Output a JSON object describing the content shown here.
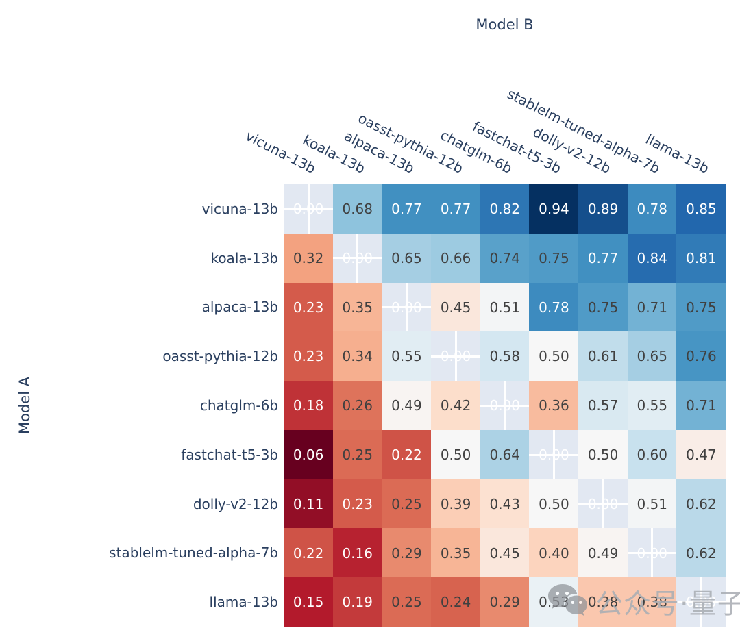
{
  "chart_data": {
    "type": "heatmap",
    "title": "",
    "xlabel": "Model B",
    "ylabel": "Model A",
    "x_categories": [
      "vicuna-13b",
      "koala-13b",
      "alpaca-13b",
      "oasst-pythia-12b",
      "chatglm-6b",
      "fastchat-t5-3b",
      "dolly-v2-12b",
      "stablelm-tuned-alpha-7b",
      "llama-13b"
    ],
    "y_categories": [
      "vicuna-13b",
      "koala-13b",
      "alpaca-13b",
      "oasst-pythia-12b",
      "chatglm-6b",
      "fastchat-t5-3b",
      "dolly-v2-12b",
      "stablelm-tuned-alpha-7b",
      "llama-13b"
    ],
    "matrix": [
      [
        null,
        0.68,
        0.77,
        0.77,
        0.82,
        0.94,
        0.89,
        0.78,
        0.85
      ],
      [
        0.32,
        null,
        0.65,
        0.66,
        0.74,
        0.75,
        0.77,
        0.84,
        0.81
      ],
      [
        0.23,
        0.35,
        null,
        0.45,
        0.51,
        0.78,
        0.75,
        0.71,
        0.75
      ],
      [
        0.23,
        0.34,
        0.55,
        null,
        0.58,
        0.5,
        0.61,
        0.65,
        0.76
      ],
      [
        0.18,
        0.26,
        0.49,
        0.42,
        null,
        0.36,
        0.57,
        0.55,
        0.71
      ],
      [
        0.06,
        0.25,
        0.22,
        0.5,
        0.64,
        null,
        0.5,
        0.6,
        0.47
      ],
      [
        0.11,
        0.23,
        0.25,
        0.39,
        0.43,
        0.5,
        null,
        0.51,
        0.62
      ],
      [
        0.22,
        0.16,
        0.29,
        0.35,
        0.45,
        0.4,
        0.49,
        null,
        0.62
      ],
      [
        0.15,
        0.19,
        0.25,
        0.24,
        0.29,
        0.53,
        0.38,
        0.38,
        null
      ]
    ],
    "diagonal_display": "0.00",
    "zmin": 0.06,
    "zmax": 0.94,
    "colorscale_name": "RdBu",
    "colorscale_stops": [
      {
        "pos": 0.0,
        "color": "#67001f"
      },
      {
        "pos": 0.1,
        "color": "#b2182b"
      },
      {
        "pos": 0.2,
        "color": "#d6604d"
      },
      {
        "pos": 0.3,
        "color": "#f4a582"
      },
      {
        "pos": 0.4,
        "color": "#fddbc7"
      },
      {
        "pos": 0.5,
        "color": "#f7f7f7"
      },
      {
        "pos": 0.6,
        "color": "#d1e5f0"
      },
      {
        "pos": 0.7,
        "color": "#92c5de"
      },
      {
        "pos": 0.8,
        "color": "#4393c3"
      },
      {
        "pos": 0.9,
        "color": "#2166ac"
      },
      {
        "pos": 1.0,
        "color": "#053061"
      }
    ],
    "nan_cell_bg": "#e2e8f2",
    "gridline_color": "#ffffff",
    "legend_position": "none",
    "grid": false
  },
  "colors": {
    "axis_label": "#2a3f5f",
    "cell_text_dark": "#404040",
    "cell_text_light": "#ffffff",
    "background": "#ffffff",
    "watermark_gray": "#aaaeb4"
  },
  "watermark": {
    "icon": "wechat-icon",
    "text": "公众号·量子位"
  }
}
